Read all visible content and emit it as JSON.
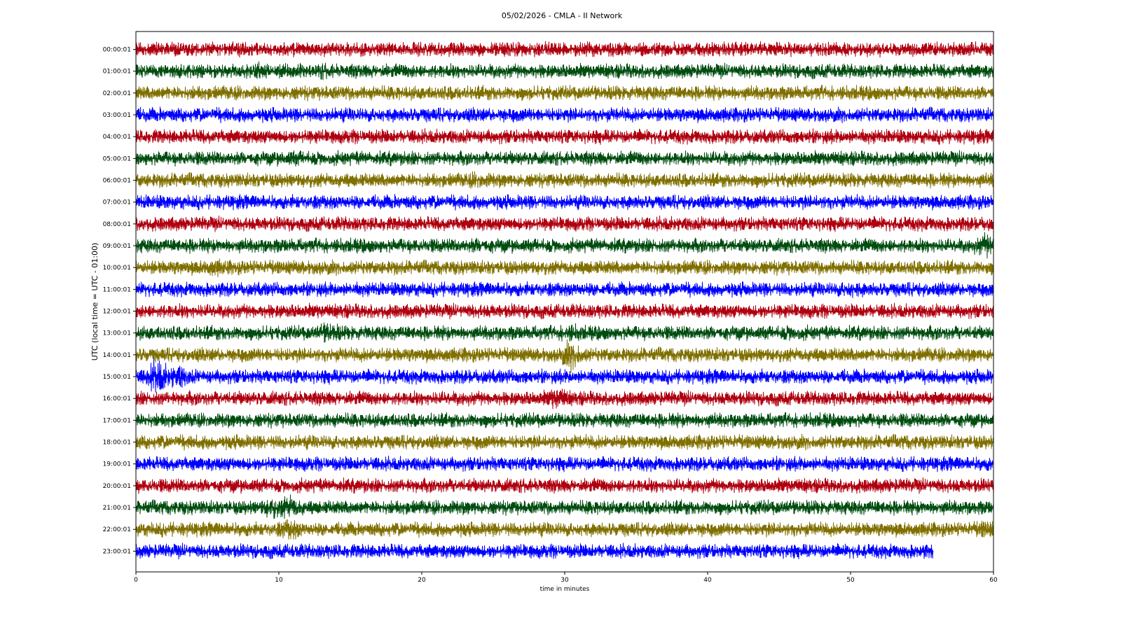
{
  "chart_data": {
    "type": "line",
    "title": "05/02/2026 - CMLA - II Network",
    "xlabel": "time in minutes",
    "ylabel": "UTC (local time = UTC - 01:00)",
    "xlim": [
      0,
      60
    ],
    "x_ticks": [
      0,
      10,
      20,
      30,
      40,
      50,
      60
    ],
    "grid": false,
    "legend": "none",
    "colors": [
      "#b00010",
      "#004d10",
      "#807000",
      "#0000ff"
    ],
    "rows": [
      {
        "label": "00:00:01",
        "color": "#b00010",
        "events": []
      },
      {
        "label": "01:00:01",
        "color": "#004d10",
        "events": [
          {
            "t": 8.5,
            "amp": 1.3
          },
          {
            "t": 13,
            "amp": 1.2
          }
        ]
      },
      {
        "label": "02:00:01",
        "color": "#807000",
        "events": []
      },
      {
        "label": "03:00:01",
        "color": "#0000ff",
        "events": []
      },
      {
        "label": "04:00:01",
        "color": "#b00010",
        "events": []
      },
      {
        "label": "05:00:01",
        "color": "#004d10",
        "events": [
          {
            "t": 11,
            "amp": 1.2
          }
        ]
      },
      {
        "label": "06:00:01",
        "color": "#807000",
        "events": [
          {
            "t": 24,
            "amp": 1.3
          }
        ]
      },
      {
        "label": "07:00:01",
        "color": "#0000ff",
        "events": []
      },
      {
        "label": "08:00:01",
        "color": "#b00010",
        "events": []
      },
      {
        "label": "09:00:01",
        "color": "#004d10",
        "events": [
          {
            "t": 59.5,
            "amp": 1.8
          },
          {
            "t": 24,
            "amp": 1.2
          }
        ]
      },
      {
        "label": "10:00:01",
        "color": "#807000",
        "events": [
          {
            "t": 5.5,
            "amp": 1.3
          }
        ]
      },
      {
        "label": "11:00:01",
        "color": "#0000ff",
        "events": [
          {
            "t": 50,
            "amp": 1.3
          }
        ]
      },
      {
        "label": "12:00:01",
        "color": "#b00010",
        "events": []
      },
      {
        "label": "13:00:01",
        "color": "#004d10",
        "events": [
          {
            "t": 13.5,
            "amp": 1.6
          },
          {
            "t": 30.5,
            "amp": 1.3
          },
          {
            "t": 46,
            "amp": 1.2
          }
        ]
      },
      {
        "label": "14:00:01",
        "color": "#807000",
        "events": [
          {
            "t": 30.5,
            "amp": 2.2
          }
        ]
      },
      {
        "label": "15:00:01",
        "color": "#0000ff",
        "events": [
          {
            "t": 1.5,
            "amp": 2.6
          },
          {
            "t": 3,
            "amp": 1.8
          }
        ]
      },
      {
        "label": "16:00:01",
        "color": "#b00010",
        "events": [
          {
            "t": 29.5,
            "amp": 1.7
          }
        ]
      },
      {
        "label": "17:00:01",
        "color": "#004d10",
        "events": []
      },
      {
        "label": "18:00:01",
        "color": "#807000",
        "events": []
      },
      {
        "label": "19:00:01",
        "color": "#0000ff",
        "events": []
      },
      {
        "label": "20:00:01",
        "color": "#b00010",
        "events": []
      },
      {
        "label": "21:00:01",
        "color": "#004d10",
        "events": [
          {
            "t": 9.5,
            "amp": 1.5
          },
          {
            "t": 10.8,
            "amp": 1.8
          }
        ]
      },
      {
        "label": "22:00:01",
        "color": "#807000",
        "events": [
          {
            "t": 10.8,
            "amp": 1.6
          },
          {
            "t": 59.5,
            "amp": 1.4
          }
        ]
      },
      {
        "label": "23:00:01",
        "color": "#0000ff",
        "end_minute": 55.8,
        "events": []
      }
    ]
  }
}
